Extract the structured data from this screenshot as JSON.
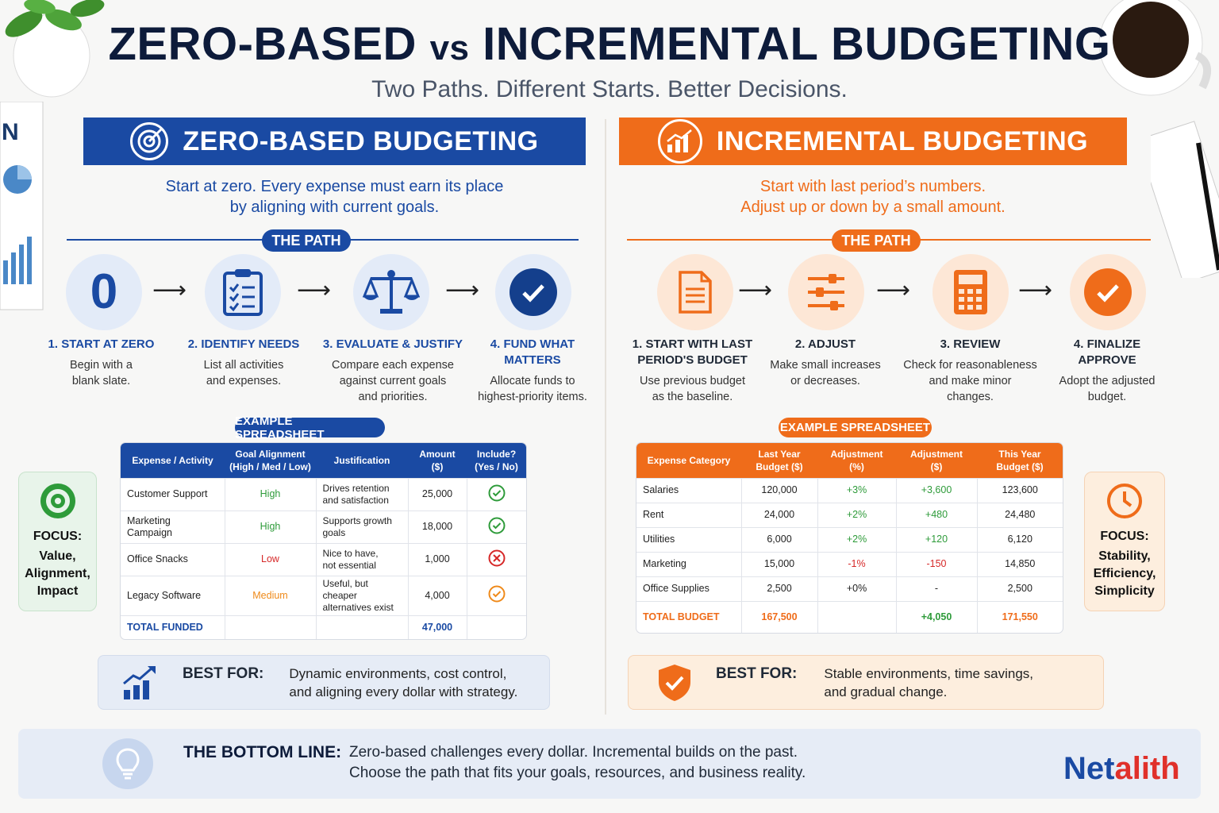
{
  "header": {
    "title_left": "ZERO-BASED",
    "title_vs": "vs",
    "title_right": "INCREMENTAL BUDGETING",
    "subtitle": "Two Paths. Different Starts. Better Decisions."
  },
  "colors": {
    "blue": "#1a4aa3",
    "orange": "#ef6c1a",
    "green": "#2e9b3a",
    "red": "#d62828"
  },
  "zero": {
    "banner": "ZERO-BASED BUDGETING",
    "tagline_1": "Start at zero. Every expense must earn its place",
    "tagline_2": "by aligning with current goals.",
    "path_label": "THE PATH",
    "start_glyph": "0",
    "steps": [
      {
        "title_1": "1. START AT ZERO",
        "title_2": "",
        "desc_1": "Begin with a",
        "desc_2": "blank slate.",
        "desc_3": "",
        "icon": "zero-icon"
      },
      {
        "title_1": "2. IDENTIFY NEEDS",
        "title_2": "",
        "desc_1": "List all activities",
        "desc_2": "and expenses.",
        "desc_3": "",
        "icon": "clipboard-icon"
      },
      {
        "title_1": "3. EVALUATE & JUSTIFY",
        "title_2": "",
        "desc_1": "Compare each expense",
        "desc_2": "against current goals",
        "desc_3": "and priorities.",
        "icon": "scale-icon"
      },
      {
        "title_1": "4. FUND WHAT",
        "title_2": "MATTERS",
        "desc_1": "Allocate funds to",
        "desc_2": "highest-priority items.",
        "desc_3": "",
        "icon": "check-circle-icon"
      }
    ],
    "spreadsheet_label": "EXAMPLE SPREADSHEET",
    "table": {
      "headers": [
        [
          "Expense / Activity",
          ""
        ],
        [
          "Goal Alignment",
          "(High / Med / Low)"
        ],
        [
          "Justification",
          ""
        ],
        [
          "Amount",
          "($)"
        ],
        [
          "Include?",
          "(Yes / No)"
        ]
      ],
      "rows": [
        {
          "activity": "Customer Support",
          "alignment": "High",
          "just_1": "Drives retention",
          "just_2": "and satisfaction",
          "amount": "25,000",
          "include": "yes"
        },
        {
          "activity": "Marketing Campaign",
          "alignment": "High",
          "just_1": "Supports growth",
          "just_2": "goals",
          "amount": "18,000",
          "include": "yes"
        },
        {
          "activity": "Office Snacks",
          "alignment": "Low",
          "just_1": "Nice to have,",
          "just_2": "not essential",
          "amount": "1,000",
          "include": "no"
        },
        {
          "activity": "Legacy Software",
          "alignment": "Medium",
          "just_1": "Useful, but cheaper",
          "just_2": "alternatives exist",
          "amount": "4,000",
          "include": "maybe"
        }
      ],
      "total_label": "TOTAL FUNDED",
      "total_value": "47,000"
    },
    "focus": {
      "label": "FOCUS:",
      "line_1": "Value,",
      "line_2": "Alignment,",
      "line_3": "Impact"
    },
    "best_for": {
      "label": "BEST FOR:",
      "line_1": "Dynamic environments, cost control,",
      "line_2": "and aligning every dollar with strategy."
    }
  },
  "incremental": {
    "banner": "INCREMENTAL BUDGETING",
    "tagline_1": "Start with last period’s numbers.",
    "tagline_2": "Adjust up or down by a small amount.",
    "path_label": "THE PATH",
    "steps": [
      {
        "title_1": "1. START WITH LAST",
        "title_2": "PERIOD'S BUDGET",
        "desc_1": "Use previous budget",
        "desc_2": "as the baseline.",
        "desc_3": "",
        "icon": "document-icon"
      },
      {
        "title_1": "2. ADJUST",
        "title_2": "",
        "desc_1": "Make small increases",
        "desc_2": "or decreases.",
        "desc_3": "",
        "icon": "sliders-icon"
      },
      {
        "title_1": "3. REVIEW",
        "title_2": "",
        "desc_1": "Check for reasonableness",
        "desc_2": "and make minor",
        "desc_3": "changes.",
        "icon": "calculator-icon"
      },
      {
        "title_1": "4. FINALIZE",
        "title_2": "APPROVE",
        "desc_1": "Adopt the adjusted",
        "desc_2": "budget.",
        "desc_3": "",
        "icon": "check-circle-icon"
      }
    ],
    "spreadsheet_label": "EXAMPLE SPREADSHEET",
    "table": {
      "headers": [
        [
          "Expense Category",
          ""
        ],
        [
          "Last Year",
          "Budget ($)"
        ],
        [
          "Adjustment",
          "(%)"
        ],
        [
          "Adjustment",
          "($)"
        ],
        [
          "This Year",
          "Budget ($)"
        ]
      ],
      "rows": [
        {
          "category": "Salaries",
          "last": "120,000",
          "pct": "+3%",
          "amt": "+3,600",
          "this": "123,600"
        },
        {
          "category": "Rent",
          "last": "24,000",
          "pct": "+2%",
          "amt": "+480",
          "this": "24,480"
        },
        {
          "category": "Utilities",
          "last": "6,000",
          "pct": "+2%",
          "amt": "+120",
          "this": "6,120"
        },
        {
          "category": "Marketing",
          "last": "15,000",
          "pct": "-1%",
          "amt": "-150",
          "this": "14,850"
        },
        {
          "category": "Office Supplies",
          "last": "2,500",
          "pct": "+0%",
          "amt": "-",
          "this": "2,500"
        }
      ],
      "total_label": "TOTAL BUDGET",
      "total_last": "167,500",
      "total_amt": "+4,050",
      "total_this": "171,550"
    },
    "focus": {
      "label": "FOCUS:",
      "line_1": "Stability,",
      "line_2": "Efficiency,",
      "line_3": "Simplicity"
    },
    "best_for": {
      "label": "BEST FOR:",
      "line_1": "Stable environments, time savings,",
      "line_2": "and gradual change."
    }
  },
  "bottom_line": {
    "label": "THE BOTTOM LINE:",
    "line_1": "Zero-based challenges every dollar. Incremental builds on the past.",
    "line_2": "Choose the path that fits your goals, resources, and business reality."
  },
  "brand": {
    "part_1": "Net",
    "part_2": "alith"
  }
}
